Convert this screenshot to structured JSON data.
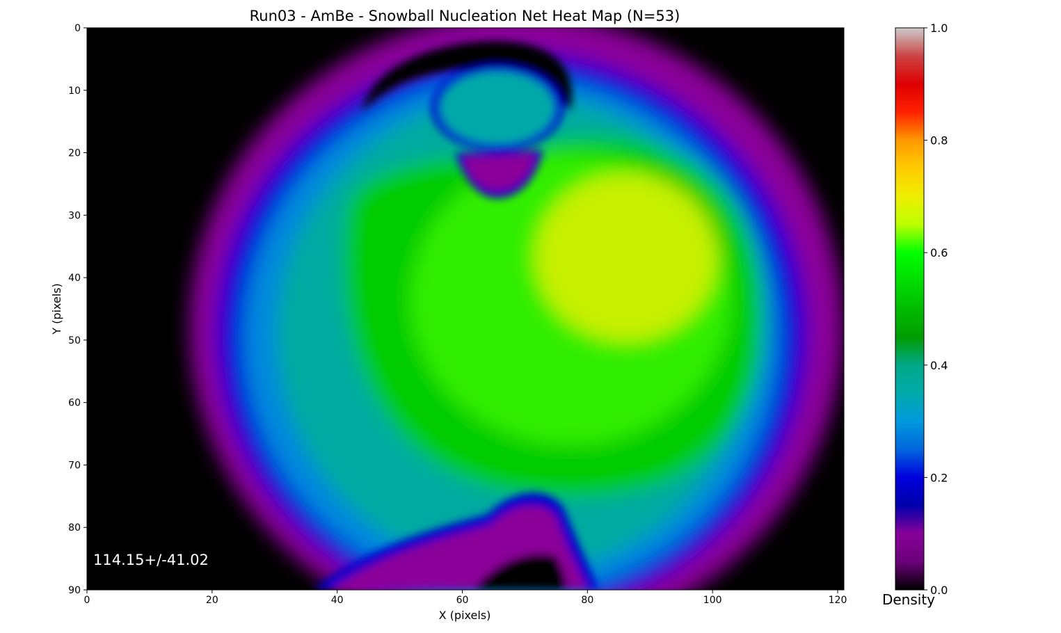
{
  "chart_data": {
    "type": "heatmap",
    "title": "Run03 - AmBe - Snowball Nucleation Net Heat Map (N=53)",
    "xlabel": "X (pixels)",
    "ylabel": "Y (pixels)",
    "xlim": [
      0,
      121
    ],
    "ylim": [
      90,
      0
    ],
    "x_ticks": [
      "0",
      "20",
      "40",
      "60",
      "80",
      "100",
      "120"
    ],
    "y_ticks": [
      "0",
      "10",
      "20",
      "30",
      "40",
      "50",
      "60",
      "70",
      "80",
      "90"
    ],
    "colorbar": {
      "label": "Density",
      "range": [
        0.0,
        1.0
      ],
      "ticks": [
        "0.0",
        "0.2",
        "0.4",
        "0.6",
        "0.8",
        "1.0"
      ],
      "colormap": "nipy_spectral"
    },
    "annotation": "114.15+/-41.02",
    "grid": false
  }
}
